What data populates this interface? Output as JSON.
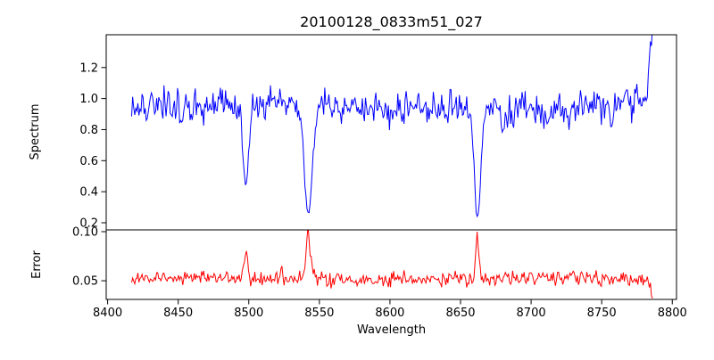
{
  "figure": {
    "title": "20100128_0833m51_027",
    "background_color": "#ffffff",
    "axis_color": "#000000",
    "text_color": "#000000"
  },
  "chart_data": {
    "type": "line",
    "title": "20100128_0833m51_027",
    "xlabel": "Wavelength",
    "xlim": [
      8399,
      8803
    ],
    "xticks": {
      "values": [
        8400,
        8450,
        8500,
        8550,
        8600,
        8650,
        8700,
        8750,
        8800
      ],
      "labels": [
        "8400",
        "8450",
        "8500",
        "8550",
        "8600",
        "8650",
        "8700",
        "8750",
        "8800"
      ]
    },
    "grid": false,
    "legend": false,
    "panels": [
      {
        "name": "spectrum-panel",
        "ylabel": "Spectrum",
        "ylim": [
          0.154,
          1.411
        ],
        "yticks": {
          "values": [
            0.2,
            0.4,
            0.6,
            0.8,
            1.0,
            1.2
          ],
          "labels": [
            "0.2",
            "0.4",
            "0.6",
            "0.8",
            "1.0",
            "1.2"
          ]
        },
        "series": {
          "name": "spectrum",
          "color": "#0000ff",
          "x_range": [
            8417,
            8786
          ],
          "n_points": 500,
          "continuum_level": 0.95,
          "continuum_variation": 0.02,
          "noise_std": 0.052,
          "absorption_lines": [
            {
              "center": 8498,
              "depth": 0.5,
              "width": 2.6
            },
            {
              "center": 8498,
              "depth": 0.035,
              "width": 7.0
            },
            {
              "center": 8542,
              "depth": 0.66,
              "width": 3.8
            },
            {
              "center": 8542,
              "depth": 0.05,
              "width": 9.0
            },
            {
              "center": 8662,
              "depth": 0.68,
              "width": 3.0
            },
            {
              "center": 8662,
              "depth": 0.04,
              "width": 8.0
            },
            {
              "center": 8428,
              "depth": 0.12,
              "width": 1.4
            },
            {
              "center": 8452,
              "depth": 0.1,
              "width": 1.2
            },
            {
              "center": 8468,
              "depth": 0.09,
              "width": 1.0
            },
            {
              "center": 8585,
              "depth": 0.08,
              "width": 1.0
            },
            {
              "center": 8640,
              "depth": 0.1,
              "width": 1.2
            },
            {
              "center": 8680,
              "depth": 0.13,
              "width": 1.6
            },
            {
              "center": 8713,
              "depth": 0.08,
              "width": 1.0
            },
            {
              "center": 8757,
              "depth": 0.11,
              "width": 1.3
            }
          ],
          "end_spike": {
            "center": 8786,
            "height": 0.4,
            "width": 2.5,
            "peak_value": 1.35
          }
        }
      },
      {
        "name": "error-panel",
        "ylabel": "Error",
        "ylim": [
          0.031,
          0.1018
        ],
        "yticks": {
          "values": [
            0.05,
            0.1
          ],
          "labels": [
            "0.05",
            "0.10"
          ]
        },
        "series": {
          "name": "error",
          "color": "#ff0000",
          "x_range": [
            8417,
            8786
          ],
          "n_points": 500,
          "baseline_level": 0.0515,
          "baseline_variation": 0.0015,
          "noise_std": 0.0035,
          "bumps": [
            {
              "center": 8498,
              "height": 0.027,
              "width": 1.8
            },
            {
              "center": 8542,
              "height": 0.043,
              "width": 2.0
            },
            {
              "center": 8542,
              "height": 0.006,
              "width": 8.0
            },
            {
              "center": 8662,
              "height": 0.046,
              "width": 1.4
            },
            {
              "center": 8435,
              "height": 0.006,
              "width": 1.2
            },
            {
              "center": 8467,
              "height": 0.006,
              "width": 1.0
            },
            {
              "center": 8523,
              "height": 0.009,
              "width": 1.3
            },
            {
              "center": 8563,
              "height": 0.007,
              "width": 1.1
            },
            {
              "center": 8610,
              "height": 0.005,
              "width": 1.0
            },
            {
              "center": 8700,
              "height": 0.007,
              "width": 1.2
            },
            {
              "center": 8730,
              "height": 0.009,
              "width": 1.4
            },
            {
              "center": 8745,
              "height": 0.007,
              "width": 1.0
            }
          ],
          "end_drop": {
            "center": 8786,
            "depth": 0.017,
            "width": 2.0,
            "end_value": 0.034
          }
        }
      }
    ]
  }
}
